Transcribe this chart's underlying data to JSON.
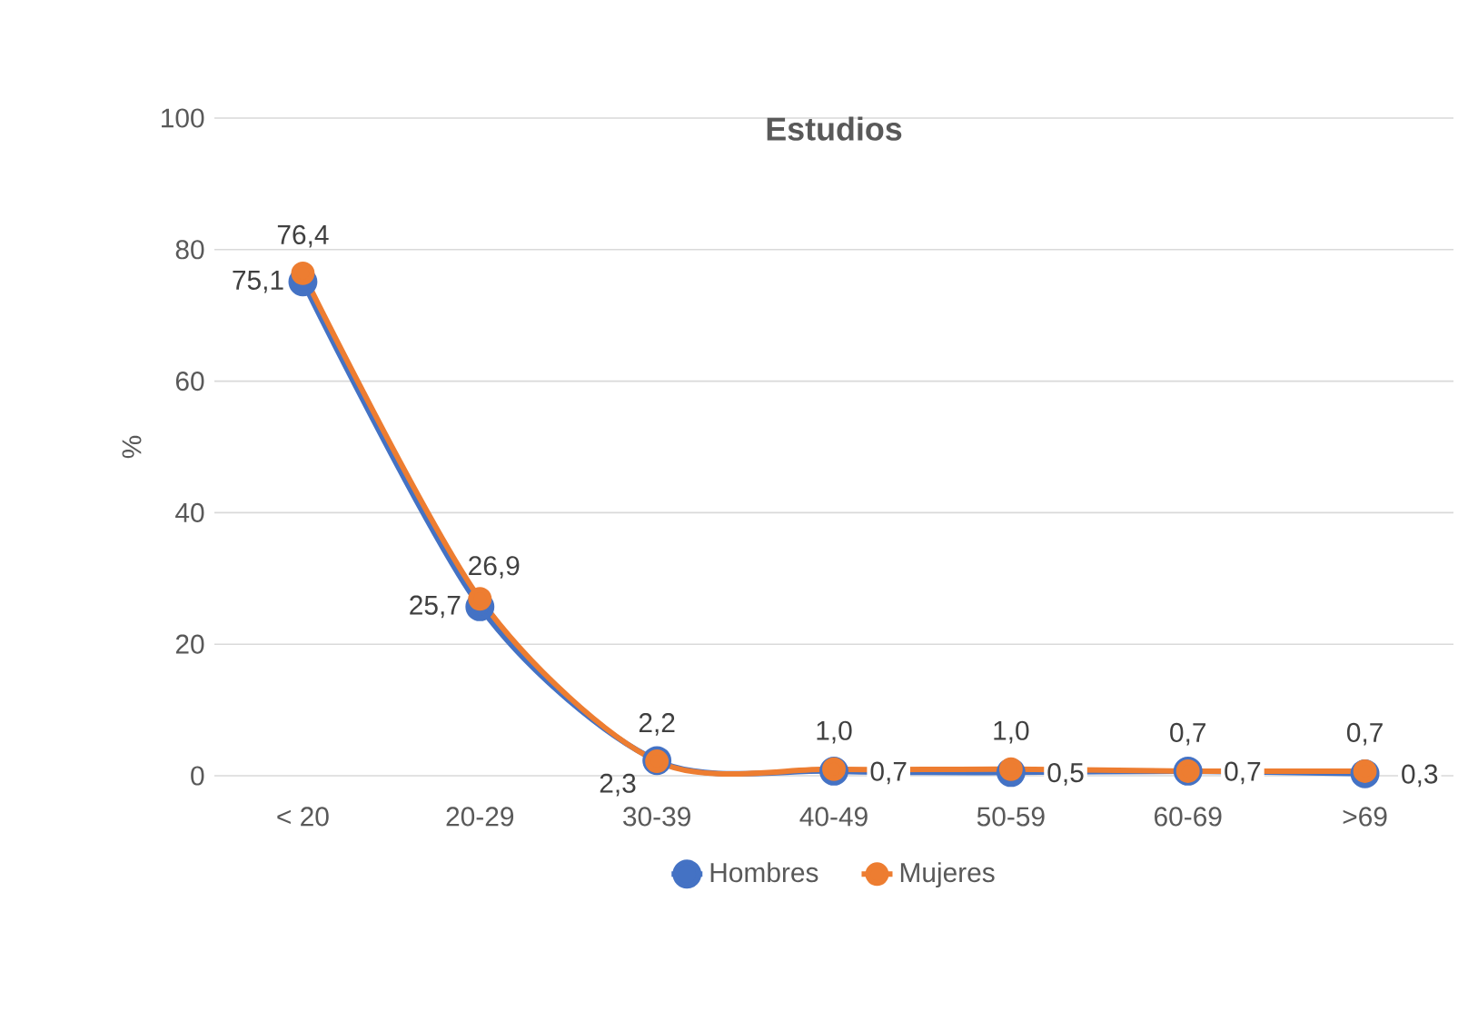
{
  "chart_data": {
    "type": "line",
    "title": "Estudios",
    "ylabel": "%",
    "categories": [
      "< 20",
      "20-29",
      "30-39",
      "40-49",
      "50-59",
      "60-69",
      ">69"
    ],
    "series": [
      {
        "name": "Hombres",
        "color": "#4472c4",
        "values": [
          75.1,
          25.7,
          2.3,
          0.7,
          0.5,
          0.7,
          0.3
        ],
        "value_labels": [
          "75,1",
          "25,7",
          "2,3",
          "0,7",
          "0,5",
          "0,7",
          "0,3"
        ]
      },
      {
        "name": "Mujeres",
        "color": "#ed7d31",
        "values": [
          76.4,
          26.9,
          2.2,
          1.0,
          1.0,
          0.7,
          0.7
        ],
        "value_labels": [
          "76,4",
          "26,9",
          "2,2",
          "1,0",
          "1,0",
          "0,7",
          "0,7"
        ]
      }
    ],
    "ylim": [
      0,
      100
    ],
    "yticks": [
      0,
      20,
      40,
      60,
      80,
      100
    ],
    "grid": "y",
    "legend": "bottom",
    "marker": "circle"
  }
}
